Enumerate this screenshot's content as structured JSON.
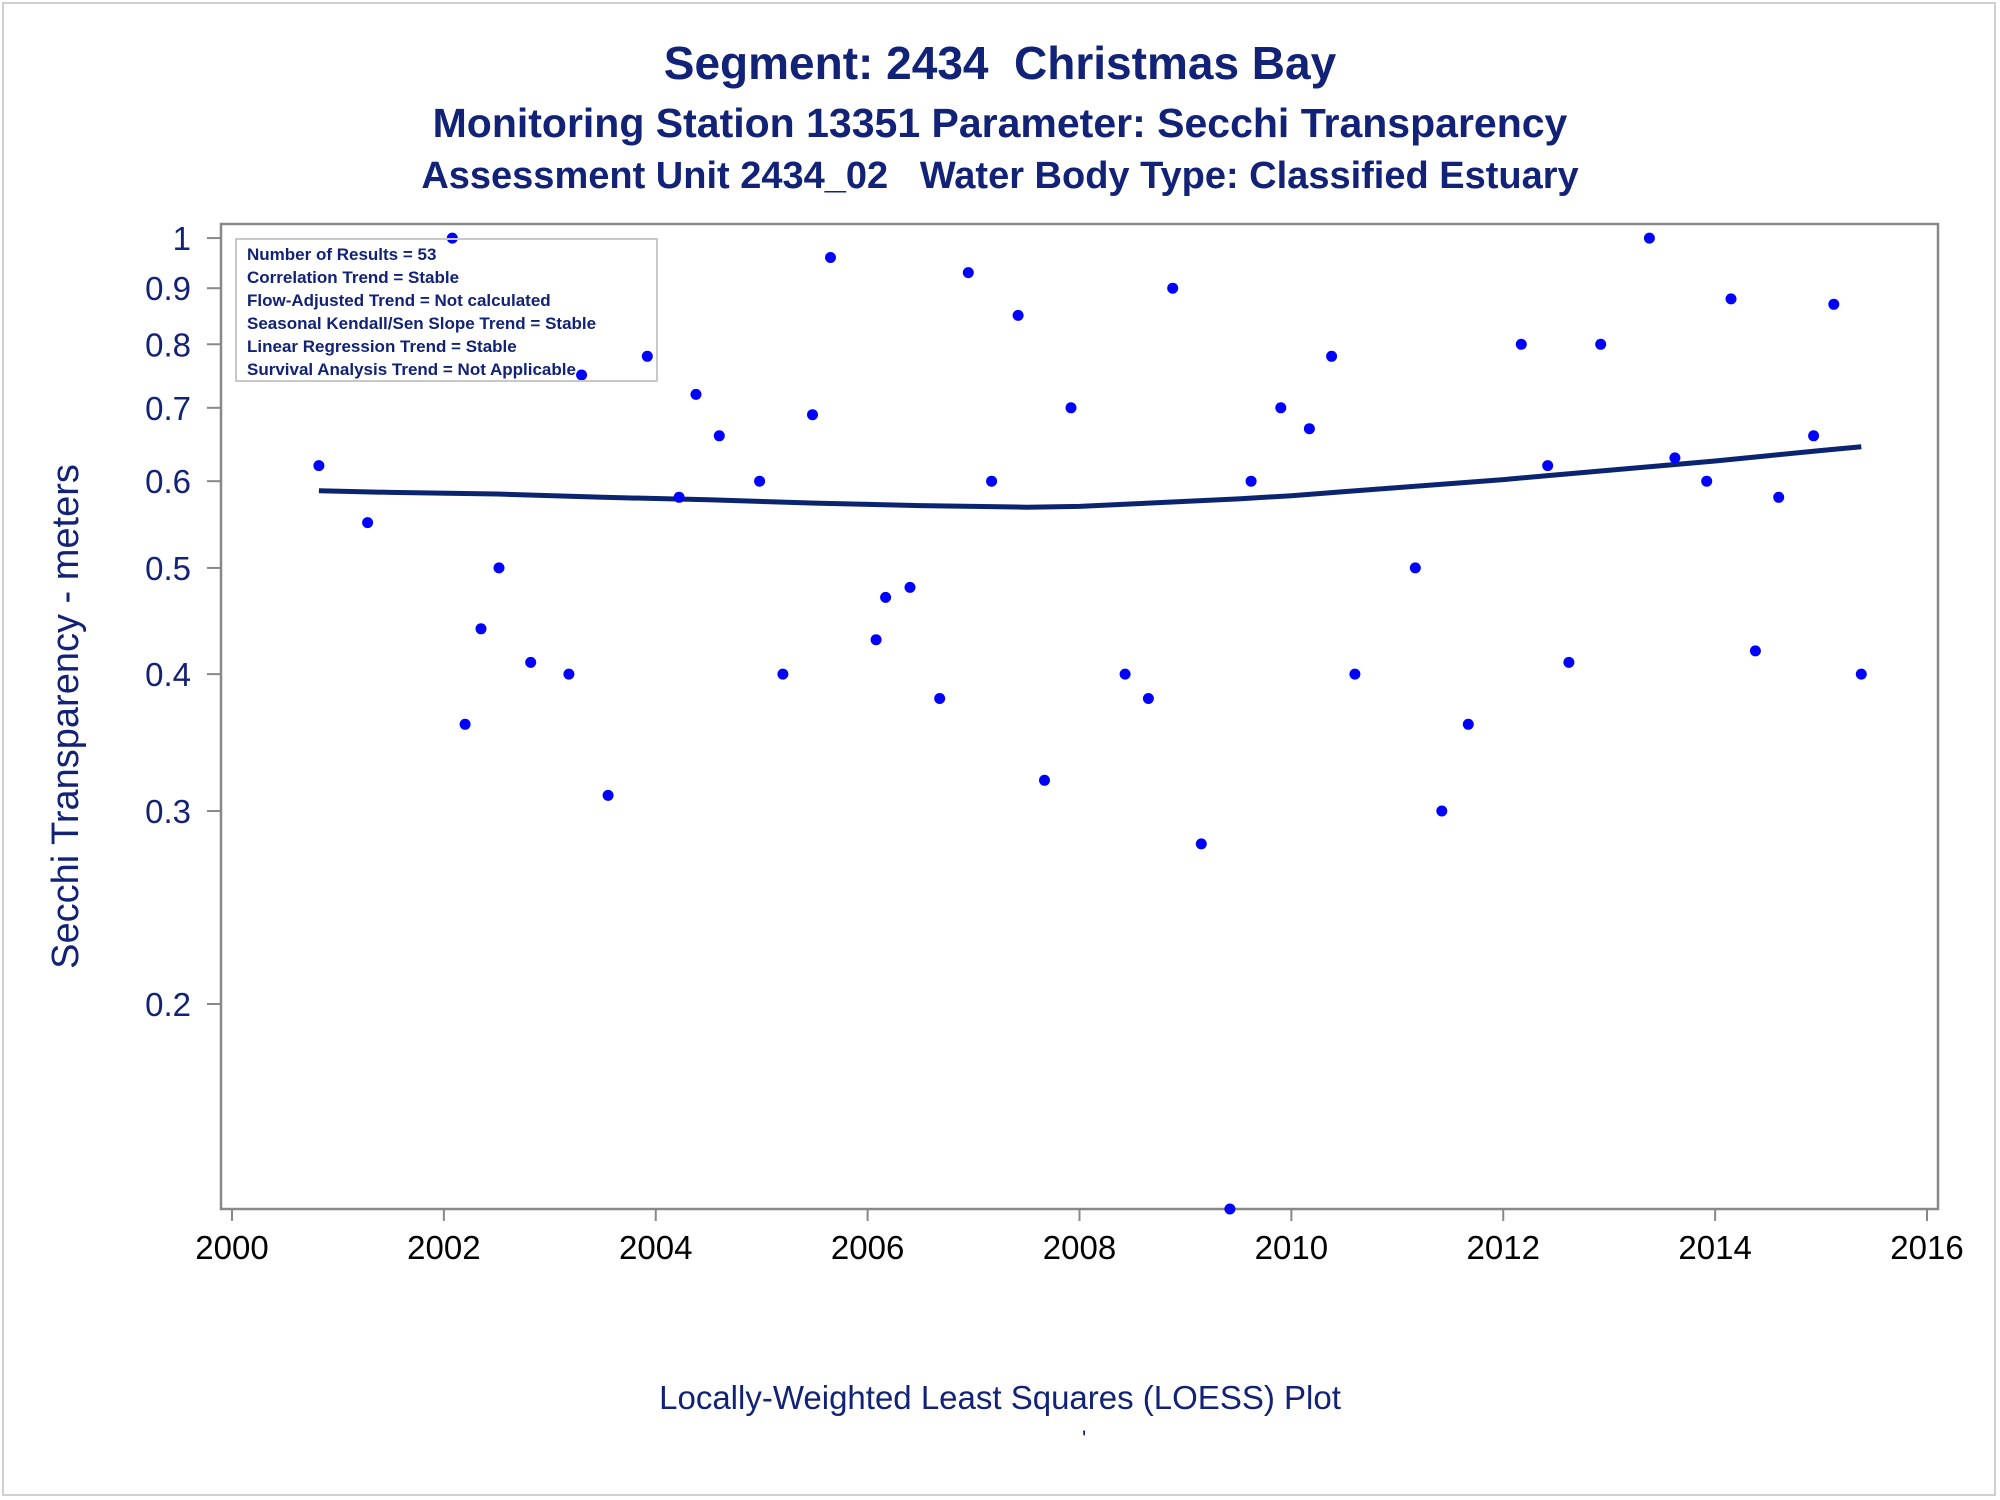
{
  "titles": {
    "line1": "Segment: 2434  Christmas Bay",
    "line2": "Monitoring Station 13351 Parameter: Secchi Transparency",
    "line3": "Assessment Unit 2434_02   Water Body Type: Classified Estuary"
  },
  "footnote": "Locally-Weighted Least Squares (LOESS) Plot",
  "footnote_mark": "'",
  "colors": {
    "text": "#112277",
    "points": "#0000ff",
    "loess": "#0a2470",
    "axis": "#888888"
  },
  "chart_data": {
    "type": "scatter",
    "ylabel": "Secchi Transparency - meters",
    "xlabel": "",
    "y_scale": "log",
    "xlim": [
      2000,
      2016
    ],
    "ylim": [
      0.13,
      1.03
    ],
    "x_ticks": [
      2000,
      2002,
      2004,
      2006,
      2008,
      2010,
      2012,
      2014,
      2016
    ],
    "y_ticks": [
      0.2,
      0.3,
      0.4,
      0.5,
      0.6,
      0.7,
      0.8,
      0.9,
      1
    ],
    "y_tick_labels": [
      "0.2",
      "0.3",
      "0.4",
      "0.5",
      "0.6",
      "0.7",
      "0.8",
      "0.9",
      "1"
    ],
    "grid": false,
    "legend_box": {
      "placement": "top-left",
      "lines": [
        "Number of Results = 53",
        "Correlation Trend = Stable",
        "Flow-Adjusted Trend = Not calculated",
        "Seasonal Kendall/Sen Slope Trend = Stable",
        "Linear Regression Trend = Stable",
        "Survival Analysis Trend = Not Applicable"
      ]
    },
    "points": [
      [
        2000.82,
        0.62
      ],
      [
        2001.28,
        0.55
      ],
      [
        2002.08,
        1.0
      ],
      [
        2002.2,
        0.36
      ],
      [
        2002.35,
        0.44
      ],
      [
        2002.52,
        0.5
      ],
      [
        2002.82,
        0.41
      ],
      [
        2003.18,
        0.4
      ],
      [
        2003.3,
        0.75
      ],
      [
        2003.55,
        0.31
      ],
      [
        2003.92,
        0.78
      ],
      [
        2004.22,
        0.58
      ],
      [
        2004.38,
        0.72
      ],
      [
        2004.6,
        0.66
      ],
      [
        2004.98,
        0.6
      ],
      [
        2005.2,
        0.4
      ],
      [
        2005.48,
        0.69
      ],
      [
        2005.65,
        0.96
      ],
      [
        2006.08,
        0.43
      ],
      [
        2006.17,
        0.47
      ],
      [
        2006.4,
        0.48
      ],
      [
        2006.68,
        0.38
      ],
      [
        2006.95,
        0.93
      ],
      [
        2007.17,
        0.6
      ],
      [
        2007.42,
        0.85
      ],
      [
        2007.67,
        0.32
      ],
      [
        2007.92,
        0.7
      ],
      [
        2008.43,
        0.4
      ],
      [
        2008.65,
        0.38
      ],
      [
        2008.88,
        0.9
      ],
      [
        2009.15,
        0.28
      ],
      [
        2009.42,
        0.13
      ],
      [
        2009.62,
        0.6
      ],
      [
        2009.9,
        0.7
      ],
      [
        2010.17,
        0.67
      ],
      [
        2010.38,
        0.78
      ],
      [
        2010.6,
        0.4
      ],
      [
        2011.17,
        0.5
      ],
      [
        2011.42,
        0.3
      ],
      [
        2011.67,
        0.36
      ],
      [
        2012.17,
        0.8
      ],
      [
        2012.42,
        0.62
      ],
      [
        2012.62,
        0.41
      ],
      [
        2012.92,
        0.8
      ],
      [
        2013.38,
        1.0
      ],
      [
        2013.62,
        0.63
      ],
      [
        2013.92,
        0.6
      ],
      [
        2014.15,
        0.88
      ],
      [
        2014.38,
        0.42
      ],
      [
        2014.6,
        0.58
      ],
      [
        2014.93,
        0.66
      ],
      [
        2015.12,
        0.87
      ],
      [
        2015.38,
        0.4
      ]
    ],
    "loess": [
      [
        2000.82,
        0.588
      ],
      [
        2001.5,
        0.586
      ],
      [
        2002.5,
        0.584
      ],
      [
        2003.5,
        0.58
      ],
      [
        2004.5,
        0.577
      ],
      [
        2005.5,
        0.573
      ],
      [
        2006.5,
        0.57
      ],
      [
        2007.5,
        0.568
      ],
      [
        2008.0,
        0.569
      ],
      [
        2008.5,
        0.572
      ],
      [
        2009.0,
        0.575
      ],
      [
        2009.5,
        0.578
      ],
      [
        2010.0,
        0.582
      ],
      [
        2010.5,
        0.587
      ],
      [
        2011.0,
        0.592
      ],
      [
        2011.5,
        0.597
      ],
      [
        2012.0,
        0.602
      ],
      [
        2012.5,
        0.608
      ],
      [
        2013.0,
        0.614
      ],
      [
        2013.5,
        0.62
      ],
      [
        2014.0,
        0.626
      ],
      [
        2014.5,
        0.633
      ],
      [
        2015.0,
        0.64
      ],
      [
        2015.38,
        0.645
      ]
    ]
  }
}
